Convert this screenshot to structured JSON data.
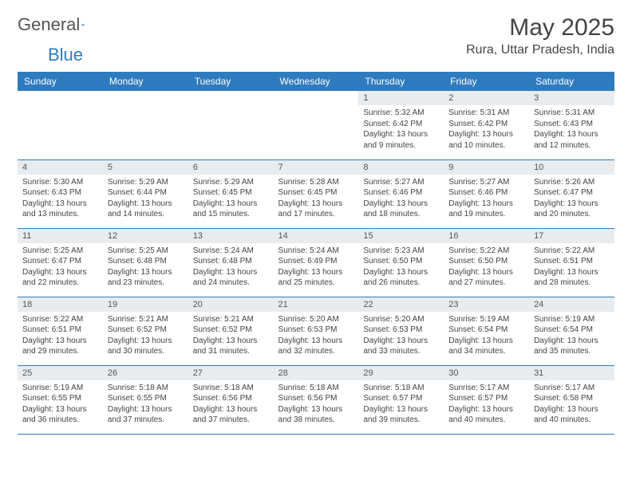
{
  "logo": {
    "text_a": "General",
    "text_b": "Blue"
  },
  "title": "May 2025",
  "location": "Rura, Uttar Pradesh, India",
  "colors": {
    "header_bg": "#2f7bbf",
    "header_text": "#ffffff",
    "daynum_bg": "#e9ecef",
    "rule": "#2f7bbf",
    "body_text": "#444444"
  },
  "day_headers": [
    "Sunday",
    "Monday",
    "Tuesday",
    "Wednesday",
    "Thursday",
    "Friday",
    "Saturday"
  ],
  "weeks": [
    [
      null,
      null,
      null,
      null,
      {
        "n": "1",
        "sr": "5:32 AM",
        "ss": "6:42 PM",
        "dl": "13 hours and 9 minutes."
      },
      {
        "n": "2",
        "sr": "5:31 AM",
        "ss": "6:42 PM",
        "dl": "13 hours and 10 minutes."
      },
      {
        "n": "3",
        "sr": "5:31 AM",
        "ss": "6:43 PM",
        "dl": "13 hours and 12 minutes."
      }
    ],
    [
      {
        "n": "4",
        "sr": "5:30 AM",
        "ss": "6:43 PM",
        "dl": "13 hours and 13 minutes."
      },
      {
        "n": "5",
        "sr": "5:29 AM",
        "ss": "6:44 PM",
        "dl": "13 hours and 14 minutes."
      },
      {
        "n": "6",
        "sr": "5:29 AM",
        "ss": "6:45 PM",
        "dl": "13 hours and 15 minutes."
      },
      {
        "n": "7",
        "sr": "5:28 AM",
        "ss": "6:45 PM",
        "dl": "13 hours and 17 minutes."
      },
      {
        "n": "8",
        "sr": "5:27 AM",
        "ss": "6:46 PM",
        "dl": "13 hours and 18 minutes."
      },
      {
        "n": "9",
        "sr": "5:27 AM",
        "ss": "6:46 PM",
        "dl": "13 hours and 19 minutes."
      },
      {
        "n": "10",
        "sr": "5:26 AM",
        "ss": "6:47 PM",
        "dl": "13 hours and 20 minutes."
      }
    ],
    [
      {
        "n": "11",
        "sr": "5:25 AM",
        "ss": "6:47 PM",
        "dl": "13 hours and 22 minutes."
      },
      {
        "n": "12",
        "sr": "5:25 AM",
        "ss": "6:48 PM",
        "dl": "13 hours and 23 minutes."
      },
      {
        "n": "13",
        "sr": "5:24 AM",
        "ss": "6:48 PM",
        "dl": "13 hours and 24 minutes."
      },
      {
        "n": "14",
        "sr": "5:24 AM",
        "ss": "6:49 PM",
        "dl": "13 hours and 25 minutes."
      },
      {
        "n": "15",
        "sr": "5:23 AM",
        "ss": "6:50 PM",
        "dl": "13 hours and 26 minutes."
      },
      {
        "n": "16",
        "sr": "5:22 AM",
        "ss": "6:50 PM",
        "dl": "13 hours and 27 minutes."
      },
      {
        "n": "17",
        "sr": "5:22 AM",
        "ss": "6:51 PM",
        "dl": "13 hours and 28 minutes."
      }
    ],
    [
      {
        "n": "18",
        "sr": "5:22 AM",
        "ss": "6:51 PM",
        "dl": "13 hours and 29 minutes."
      },
      {
        "n": "19",
        "sr": "5:21 AM",
        "ss": "6:52 PM",
        "dl": "13 hours and 30 minutes."
      },
      {
        "n": "20",
        "sr": "5:21 AM",
        "ss": "6:52 PM",
        "dl": "13 hours and 31 minutes."
      },
      {
        "n": "21",
        "sr": "5:20 AM",
        "ss": "6:53 PM",
        "dl": "13 hours and 32 minutes."
      },
      {
        "n": "22",
        "sr": "5:20 AM",
        "ss": "6:53 PM",
        "dl": "13 hours and 33 minutes."
      },
      {
        "n": "23",
        "sr": "5:19 AM",
        "ss": "6:54 PM",
        "dl": "13 hours and 34 minutes."
      },
      {
        "n": "24",
        "sr": "5:19 AM",
        "ss": "6:54 PM",
        "dl": "13 hours and 35 minutes."
      }
    ],
    [
      {
        "n": "25",
        "sr": "5:19 AM",
        "ss": "6:55 PM",
        "dl": "13 hours and 36 minutes."
      },
      {
        "n": "26",
        "sr": "5:18 AM",
        "ss": "6:55 PM",
        "dl": "13 hours and 37 minutes."
      },
      {
        "n": "27",
        "sr": "5:18 AM",
        "ss": "6:56 PM",
        "dl": "13 hours and 37 minutes."
      },
      {
        "n": "28",
        "sr": "5:18 AM",
        "ss": "6:56 PM",
        "dl": "13 hours and 38 minutes."
      },
      {
        "n": "29",
        "sr": "5:18 AM",
        "ss": "6:57 PM",
        "dl": "13 hours and 39 minutes."
      },
      {
        "n": "30",
        "sr": "5:17 AM",
        "ss": "6:57 PM",
        "dl": "13 hours and 40 minutes."
      },
      {
        "n": "31",
        "sr": "5:17 AM",
        "ss": "6:58 PM",
        "dl": "13 hours and 40 minutes."
      }
    ]
  ],
  "labels": {
    "sunrise": "Sunrise:",
    "sunset": "Sunset:",
    "daylight": "Daylight:"
  }
}
